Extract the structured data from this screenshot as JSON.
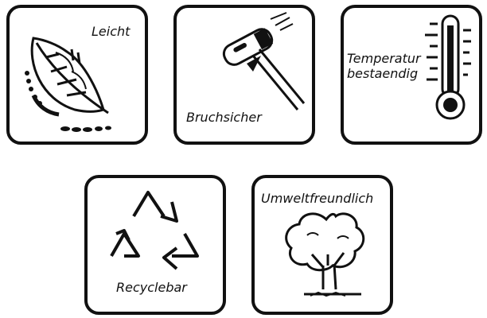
{
  "tiles": {
    "light": {
      "label": "Leicht",
      "icon": "feather-icon"
    },
    "unbreakable": {
      "label": "Bruchsicher",
      "icon": "hammer-icon"
    },
    "temperature": {
      "label_line1": "Temperatur",
      "label_line2": "bestaendig",
      "icon": "thermometer-icon"
    },
    "recyclable": {
      "label": "Recyclebar",
      "icon": "recycle-icon"
    },
    "eco": {
      "label": "Umweltfreundlich",
      "icon": "tree-icon"
    }
  },
  "colors": {
    "stroke": "#111111",
    "background": "#ffffff"
  }
}
